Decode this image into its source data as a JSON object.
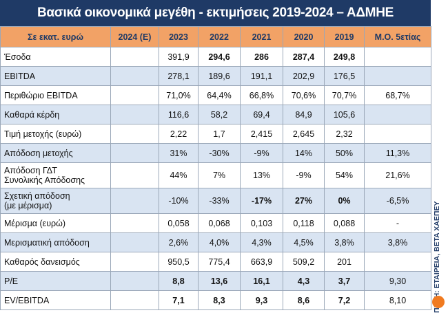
{
  "header": {
    "title": "Βασικά οικονομικά μεγέθη - εκτιμήσεις 2019-2024 – ΑΔΜΗΕ"
  },
  "table": {
    "columns": [
      "Σε εκατ. ευρώ",
      "2024 (Ε)",
      "2023",
      "2022",
      "2021",
      "2020",
      "2019",
      "Μ.Ο. 5ετίας"
    ],
    "rows": [
      {
        "label": "Έσοδα",
        "cells": [
          null,
          "391,9",
          "294,6",
          "286",
          "287,4",
          "249,8",
          null
        ],
        "bold": [
          2,
          3,
          4,
          5
        ]
      },
      {
        "label": "EBITDA",
        "cells": [
          null,
          "278,1",
          "189,6",
          "191,1",
          "202,9",
          "176,5",
          null
        ]
      },
      {
        "label": "Περιθώριο EBITDA",
        "cells": [
          null,
          "71,0%",
          "64,4%",
          "66,8%",
          "70,6%",
          "70,7%",
          "68,7%"
        ]
      },
      {
        "label": "Καθαρά κέρδη",
        "cells": [
          null,
          "116,6",
          "58,2",
          "69,4",
          "84,9",
          "105,6",
          null
        ]
      },
      {
        "label": "Τιμή μετοχής (ευρώ)",
        "cells": [
          null,
          "2,22",
          "1,7",
          "2,415",
          "2,645",
          "2,32",
          null
        ]
      },
      {
        "label": "Απόδοση μετοχής",
        "cells": [
          null,
          "31%",
          "-30%",
          "-9%",
          "14%",
          "50%",
          "11,3%"
        ]
      },
      {
        "label": "Απόδοση ΓΔΤ\nΣυνολικής Απόδοσης",
        "cells": [
          null,
          "44%",
          "7%",
          "13%",
          "-9%",
          "54%",
          "21,6%"
        ]
      },
      {
        "label": "Σχετική απόδοση\n(με μέρισμα)",
        "cells": [
          null,
          "-10%",
          "-33%",
          "-17%",
          "27%",
          "0%",
          "-6,5%"
        ],
        "bold": [
          3,
          4,
          5
        ]
      },
      {
        "label": "Μέρισμα (ευρώ)",
        "cells": [
          null,
          "0,058",
          "0,068",
          "0,103",
          "0,118",
          "0,088",
          "-"
        ]
      },
      {
        "label": "Μερισματική απόδοση",
        "cells": [
          null,
          "2,6%",
          "4,0%",
          "4,3%",
          "4,5%",
          "3,8%",
          "3,8%"
        ]
      },
      {
        "label": "Καθαρός δανεισμός",
        "cells": [
          null,
          "950,5",
          "775,4",
          "663,9",
          "509,2",
          "201",
          null
        ]
      },
      {
        "label": "P/E",
        "cells": [
          null,
          "8,8",
          "13,6",
          "16,1",
          "4,3",
          "3,7",
          "9,30"
        ],
        "bold": [
          1,
          2,
          3,
          4,
          5
        ]
      },
      {
        "label": "EV/EBITDA",
        "cells": [
          null,
          "7,1",
          "8,3",
          "9,3",
          "8,6",
          "7,2",
          "8,10"
        ],
        "bold": [
          1,
          2,
          3,
          4,
          5
        ]
      }
    ]
  },
  "source": "ΠΗΓΗ: ΕΤΑΙΡΕΙΑ, BETA ΧΑΕΠΕΥ"
}
